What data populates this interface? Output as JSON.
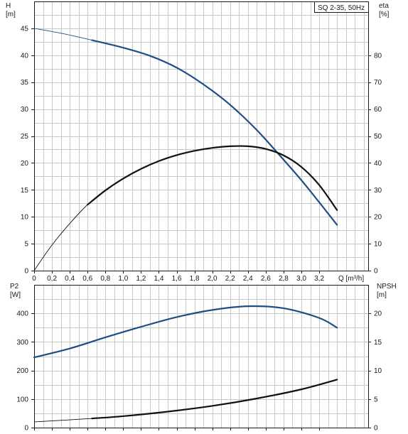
{
  "chart_data": [
    {
      "type": "line",
      "title": "SQ 2-35, 50Hz",
      "xlabel": "Q [m³/h]",
      "ylabel_left": "H\n[m]",
      "ylabel_right": "eta\n[%]",
      "xlim": [
        0,
        3.75
      ],
      "ylim_left": [
        0,
        50
      ],
      "ylim_right": [
        0,
        100
      ],
      "x_ticks": [
        "0",
        "0,2",
        "0,4",
        "0,6",
        "0,8",
        "1,0",
        "1,2",
        "1,4",
        "1,6",
        "1,8",
        "2,0",
        "2,2",
        "2,4",
        "2,6",
        "2,8",
        "3,0",
        "3,2"
      ],
      "x_tick_values": [
        0,
        0.2,
        0.4,
        0.6,
        0.8,
        1.0,
        1.2,
        1.4,
        1.6,
        1.8,
        2.0,
        2.2,
        2.4,
        2.6,
        2.8,
        3.0,
        3.2
      ],
      "y_left_ticks": [
        0,
        5,
        10,
        15,
        20,
        25,
        30,
        35,
        40,
        45
      ],
      "y_right_ticks": [
        0,
        10,
        20,
        30,
        40,
        50,
        60,
        70,
        80
      ],
      "grid": true,
      "series": [
        {
          "key": "H",
          "axis": "left",
          "color": "#1f4e86",
          "thin_until": 0.65,
          "x": [
            0,
            0.3,
            0.65,
            1.0,
            1.3,
            1.6,
            1.9,
            2.2,
            2.5,
            2.8,
            3.0,
            3.2,
            3.4
          ],
          "values": [
            45,
            44.1,
            42.8,
            41.4,
            39.9,
            37.7,
            34.6,
            30.8,
            26.1,
            20.6,
            16.8,
            12.7,
            8.5
          ]
        },
        {
          "key": "eta",
          "axis": "right",
          "color": "#111111",
          "thin_until": 0.6,
          "x": [
            0,
            0.2,
            0.4,
            0.6,
            0.8,
            1.0,
            1.2,
            1.4,
            1.6,
            1.8,
            2.0,
            2.2,
            2.4,
            2.6,
            2.8,
            3.0,
            3.2,
            3.4
          ],
          "values": [
            0,
            9.5,
            17.5,
            24.5,
            29.8,
            34.2,
            37.8,
            40.7,
            42.9,
            44.5,
            45.6,
            46.2,
            46.2,
            45.2,
            42.8,
            38.5,
            31.8,
            22.5
          ]
        }
      ]
    },
    {
      "type": "line",
      "xlabel": "",
      "ylabel_left": "P2\n[W]",
      "ylabel_right": "NPSH\n[m]",
      "xlim": [
        0,
        3.75
      ],
      "ylim_left": [
        0,
        500
      ],
      "ylim_right": [
        0,
        25
      ],
      "x_tick_values": [
        0,
        0.2,
        0.4,
        0.6,
        0.8,
        1.0,
        1.2,
        1.4,
        1.6,
        1.8,
        2.0,
        2.2,
        2.4,
        2.6,
        2.8,
        3.0,
        3.2
      ],
      "y_left_ticks": [
        0,
        100,
        200,
        300,
        400
      ],
      "y_right_ticks": [
        0,
        5,
        10,
        15,
        20
      ],
      "grid": true,
      "series": [
        {
          "key": "P2",
          "axis": "left",
          "color": "#1f4e86",
          "thin_until": 0,
          "x": [
            0,
            0.4,
            0.8,
            1.2,
            1.6,
            2.0,
            2.4,
            2.8,
            3.2,
            3.4
          ],
          "values": [
            246,
            277,
            316,
            353,
            387,
            412,
            425,
            418,
            384,
            350
          ]
        },
        {
          "key": "NPSH",
          "axis": "right",
          "color": "#111111",
          "thin_until": 0.65,
          "x": [
            0,
            0.65,
            1.0,
            1.5,
            2.0,
            2.5,
            3.0,
            3.4
          ],
          "values": [
            1.0,
            1.6,
            2.0,
            2.8,
            3.8,
            5.1,
            6.7,
            8.4
          ]
        }
      ]
    }
  ]
}
